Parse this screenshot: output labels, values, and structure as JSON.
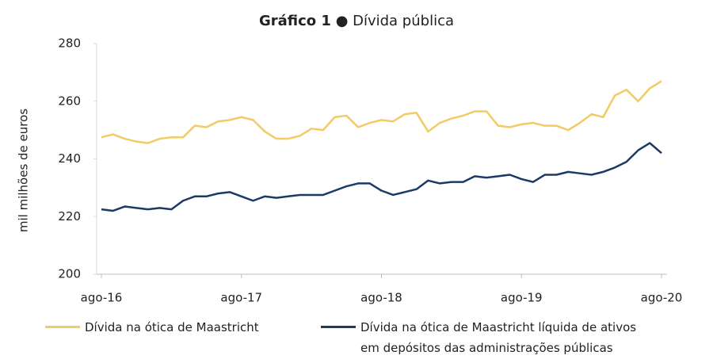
{
  "chart_data": {
    "type": "line",
    "title": "Gráfico 1",
    "subtitle": "● Dívida pública",
    "y_label": "mil milhões de euros",
    "categories": [
      "ago-16",
      null,
      null,
      null,
      null,
      null,
      null,
      null,
      null,
      null,
      null,
      null,
      "ago-17",
      null,
      null,
      null,
      null,
      null,
      null,
      null,
      null,
      null,
      null,
      null,
      "ago-18",
      null,
      null,
      null,
      null,
      null,
      null,
      null,
      null,
      null,
      null,
      null,
      "ago-19",
      null,
      null,
      null,
      null,
      null,
      null,
      null,
      null,
      null,
      null,
      null,
      "ago-20"
    ],
    "series": [
      {
        "name": "Dívida na ótica de Maastricht",
        "color": "#f2cb64",
        "values": [
          247.5,
          248.5,
          247,
          246,
          245.5,
          247,
          247.5,
          247.5,
          251.5,
          251,
          253,
          253.5,
          254.5,
          253.5,
          249.5,
          247,
          247,
          248,
          250.5,
          250,
          254.5,
          255,
          251,
          252.5,
          253.5,
          253,
          255.5,
          256,
          249.5,
          252.5,
          254,
          255,
          256.5,
          256.5,
          251.5,
          251,
          252,
          252.5,
          251.5,
          251.5,
          250,
          252.5,
          255.5,
          254.5,
          262,
          264,
          260,
          264.5,
          267
        ]
      },
      {
        "name": "Dívida na ótica de Maastricht líquida de ativos em depósitos das administrações públicas",
        "color": "#1c3a66",
        "values": [
          222.5,
          222,
          223.5,
          223,
          222.5,
          223,
          222.5,
          225.5,
          227,
          227,
          228,
          228.5,
          227,
          225.5,
          227,
          226.5,
          227,
          227.5,
          227.5,
          227.5,
          229,
          230.5,
          231.5,
          231.5,
          229,
          227.5,
          228.5,
          229.5,
          232.5,
          231.5,
          232,
          232,
          234,
          233.5,
          234,
          234.5,
          233,
          232,
          234.5,
          234.5,
          235.5,
          235,
          234.5,
          235.5,
          237,
          239,
          243,
          245.5,
          242
        ]
      }
    ],
    "ylim": [
      200,
      280
    ],
    "yticks": [
      200,
      220,
      240,
      260,
      280
    ],
    "grid": false
  }
}
